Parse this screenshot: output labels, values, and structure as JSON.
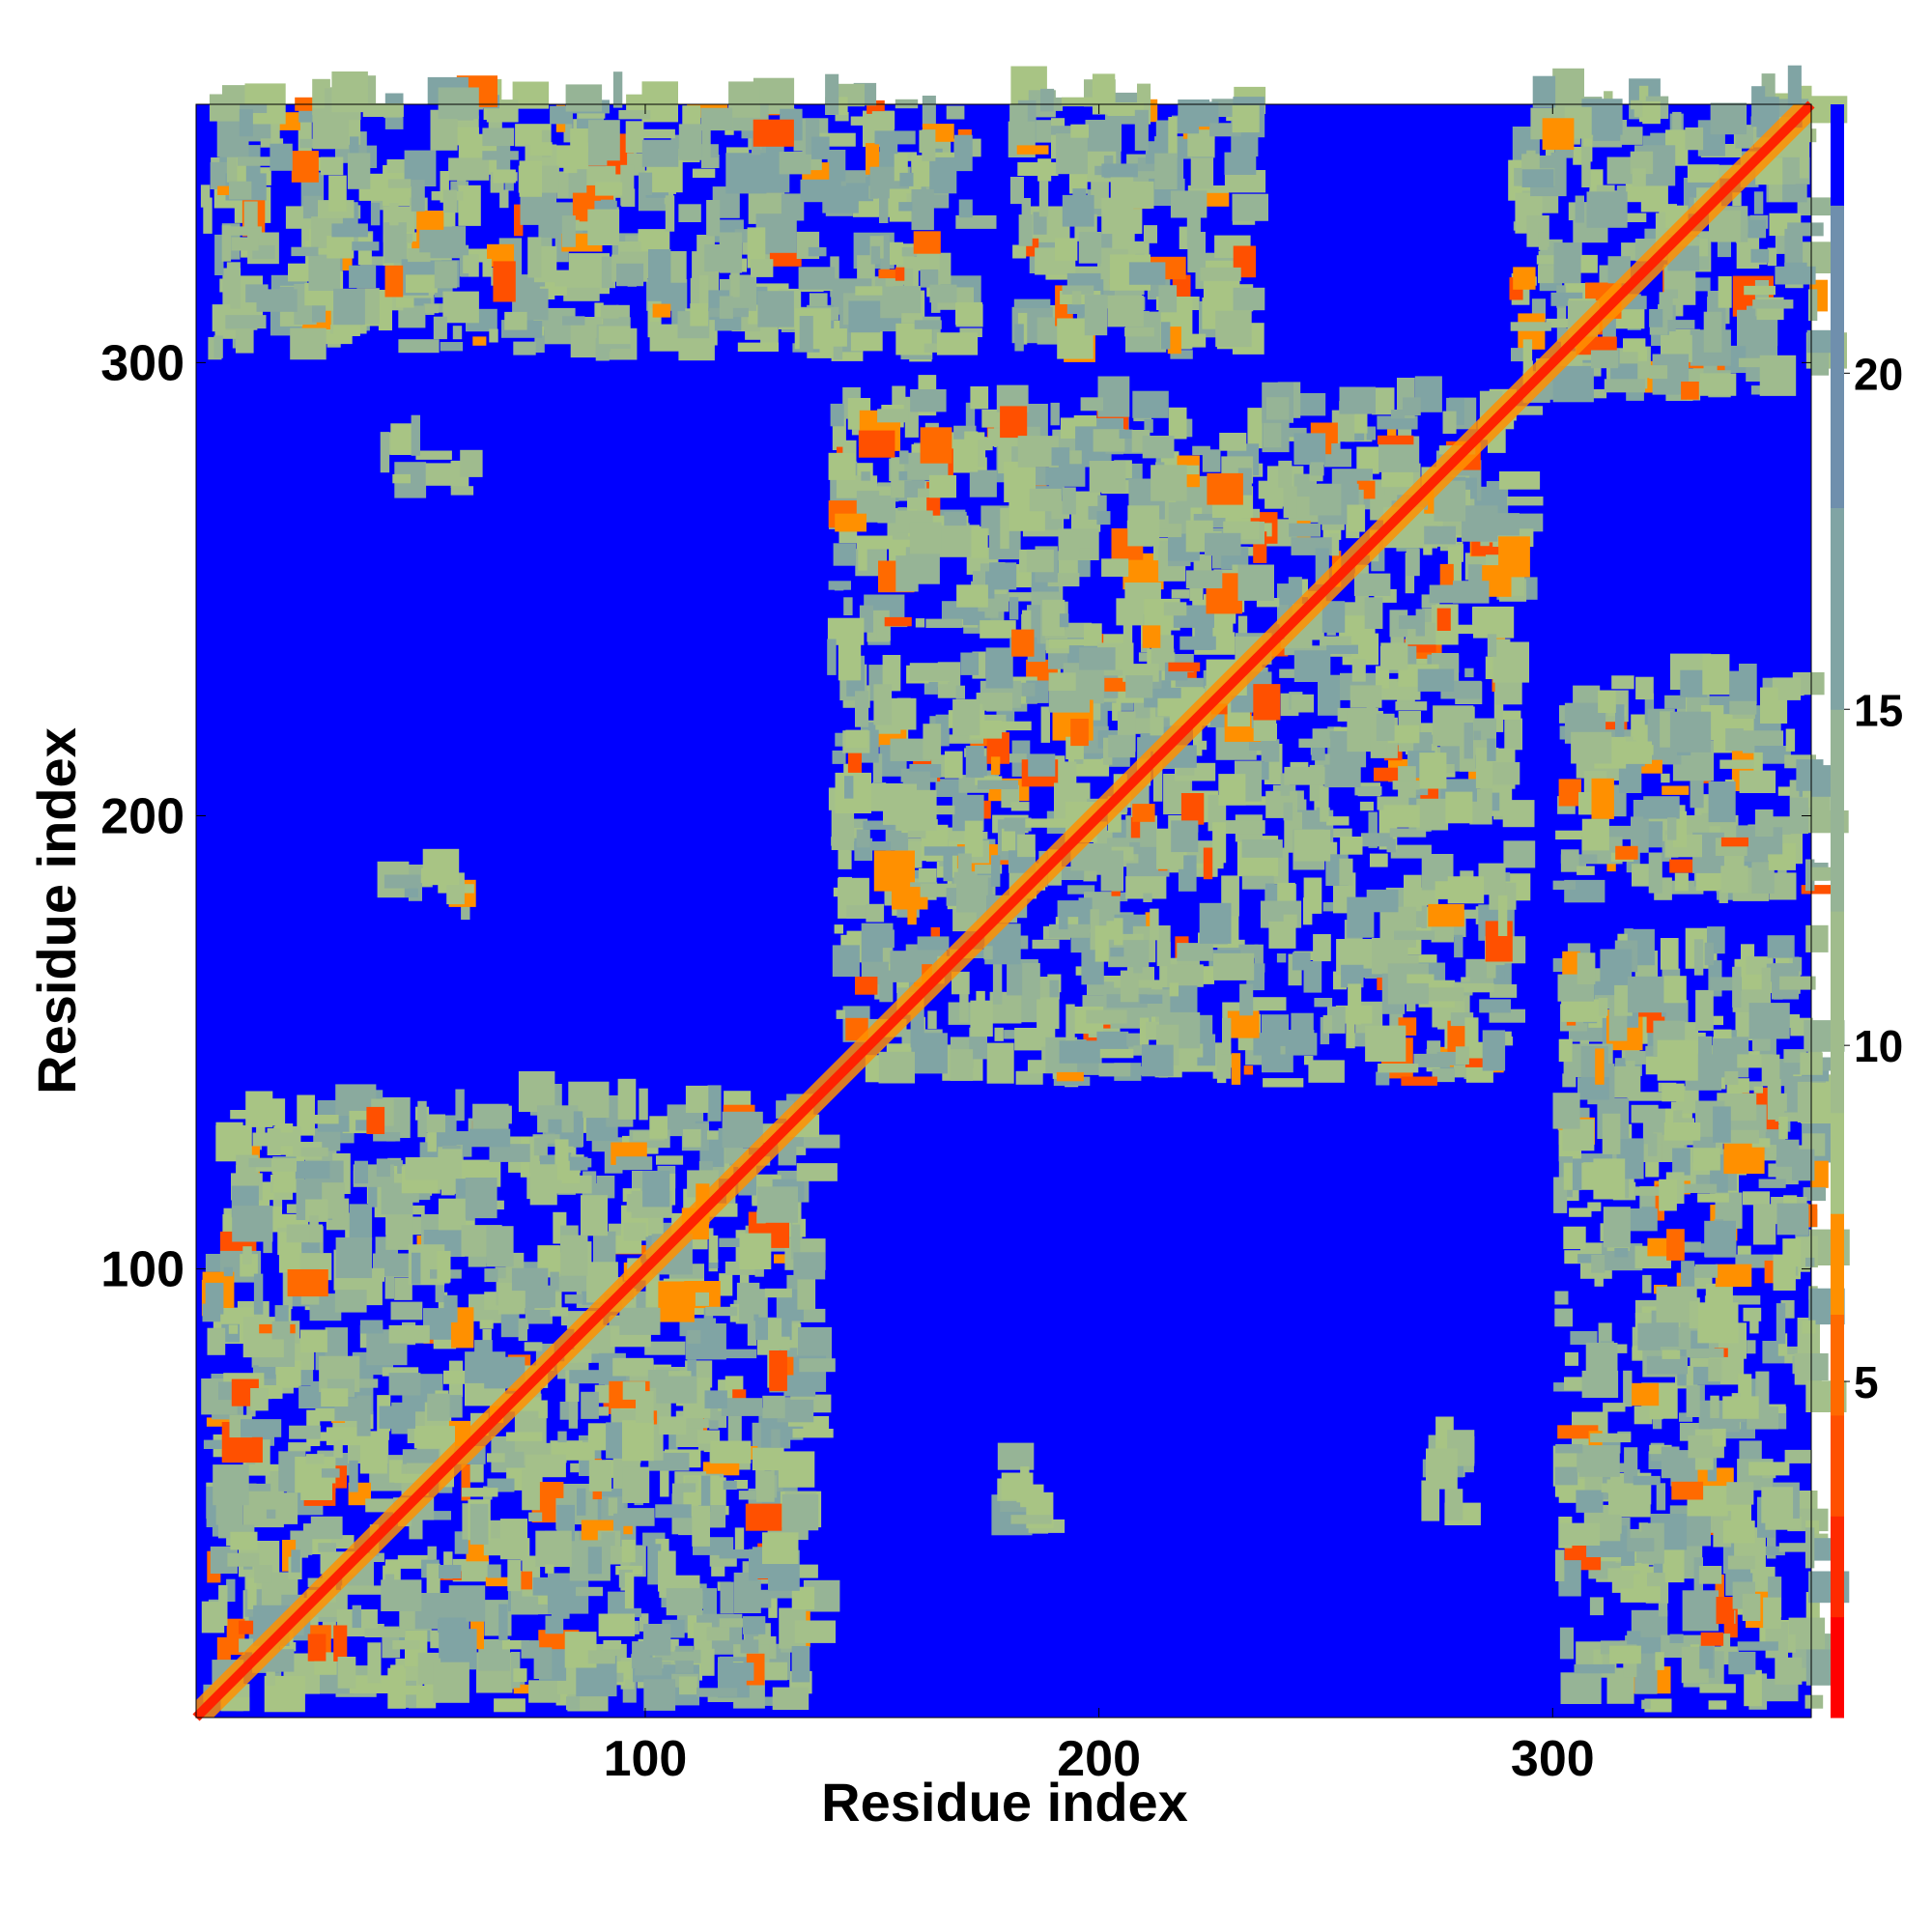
{
  "chart_data": {
    "type": "heatmap",
    "title": "",
    "xlabel": "Residue index",
    "ylabel": "Residue index",
    "n_residues": 357,
    "x_ticks": [
      100,
      200,
      300
    ],
    "y_ticks": [
      100,
      200,
      300
    ],
    "xlim": [
      1,
      357
    ],
    "ylim": [
      1,
      357
    ],
    "grid": false,
    "colorbar": {
      "position": "right",
      "ticks": [
        5,
        10,
        15,
        20
      ],
      "range": [
        0,
        24
      ],
      "segments": [
        {
          "from": 0,
          "to": 1.5,
          "color": "#ff0000"
        },
        {
          "from": 1.5,
          "to": 3,
          "color": "#ff2a00"
        },
        {
          "from": 3,
          "to": 4.5,
          "color": "#ff5000"
        },
        {
          "from": 4.5,
          "to": 6,
          "color": "#ff6a00"
        },
        {
          "from": 6,
          "to": 7.5,
          "color": "#ff9000"
        },
        {
          "from": 7.5,
          "to": 9,
          "color": "#a8c484"
        },
        {
          "from": 9,
          "to": 12,
          "color": "#a0bc8c"
        },
        {
          "from": 12,
          "to": 15,
          "color": "#96b496"
        },
        {
          "from": 15,
          "to": 18,
          "color": "#80a4a4"
        },
        {
          "from": 18,
          "to": 22.5,
          "color": "#6f8fad"
        },
        {
          "from": 22.5,
          "to": 24,
          "color": "#0000ff"
        }
      ]
    },
    "diagonal_band": {
      "color": "#ff2200"
    },
    "background_color": "#0000ff",
    "contact_regions": [
      {
        "x": [
          2,
          135
        ],
        "y": [
          2,
          135
        ],
        "level": "mid"
      },
      {
        "x": [
          140,
          290
        ],
        "y": [
          140,
          290
        ],
        "level": "mid"
      },
      {
        "x": [
          290,
          357
        ],
        "y": [
          290,
          357
        ],
        "level": "mid"
      },
      {
        "x": [
          2,
          170
        ],
        "y": [
          300,
          357
        ],
        "level": "mid"
      },
      {
        "x": [
          300,
          357
        ],
        "y": [
          2,
          170
        ],
        "level": "mid"
      },
      {
        "x": [
          40,
          60
        ],
        "y": [
          270,
          280
        ],
        "level": "mid"
      },
      {
        "x": [
          270,
          280
        ],
        "y": [
          40,
          60
        ],
        "level": "mid"
      },
      {
        "x": [
          40,
          60
        ],
        "y": [
          175,
          185
        ],
        "level": "mid"
      },
      {
        "x": [
          175,
          185
        ],
        "y": [
          40,
          60
        ],
        "level": "mid"
      },
      {
        "x": [
          300,
          357
        ],
        "y": [
          180,
          230
        ],
        "level": "mid"
      },
      {
        "x": [
          180,
          230
        ],
        "y": [
          300,
          357
        ],
        "level": "mid"
      }
    ]
  }
}
